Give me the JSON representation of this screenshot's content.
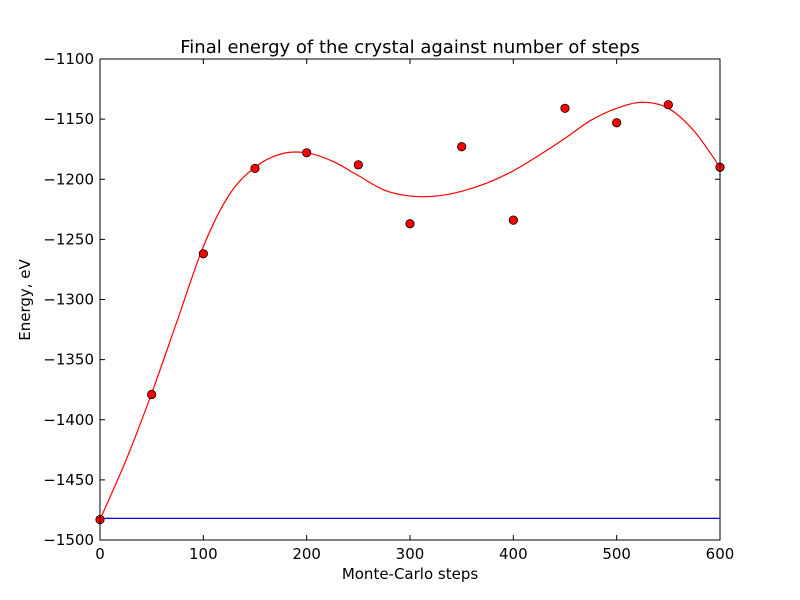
{
  "chart_data": {
    "type": "scatter",
    "title": "Final energy of the crystal against number of steps",
    "xlabel": "Monte-Carlo steps",
    "ylabel": "Energy, eV",
    "xlim": [
      0,
      600
    ],
    "ylim": [
      -1500,
      -1100
    ],
    "xticks": [
      0,
      100,
      200,
      300,
      400,
      500,
      600
    ],
    "yticks": [
      -1500,
      -1450,
      -1400,
      -1350,
      -1300,
      -1250,
      -1200,
      -1150,
      -1100
    ],
    "grid": false,
    "series": [
      {
        "kind": "points",
        "color": "#ff0000",
        "x": [
          0,
          50,
          100,
          150,
          200,
          250,
          300,
          350,
          400,
          450,
          500,
          550,
          600
        ],
        "y": [
          -1483,
          -1379,
          -1262,
          -1191,
          -1178,
          -1188,
          -1237,
          -1173,
          -1234,
          -1141,
          -1153,
          -1138,
          -1190
        ]
      },
      {
        "kind": "curve",
        "color": "#ff0000",
        "x": [
          0,
          25,
          50,
          75,
          100,
          125,
          150,
          175,
          200,
          225,
          250,
          275,
          300,
          325,
          350,
          375,
          400,
          425,
          450,
          475,
          500,
          525,
          550,
          575,
          600
        ],
        "y": [
          -1483,
          -1434,
          -1378,
          -1317,
          -1256,
          -1213,
          -1190,
          -1179,
          -1178,
          -1185,
          -1197,
          -1209,
          -1214,
          -1214,
          -1210,
          -1203,
          -1193,
          -1180,
          -1166,
          -1151,
          -1141,
          -1136,
          -1141,
          -1160,
          -1190
        ]
      },
      {
        "kind": "hline",
        "color": "#0000ff",
        "y": -1482
      }
    ]
  }
}
